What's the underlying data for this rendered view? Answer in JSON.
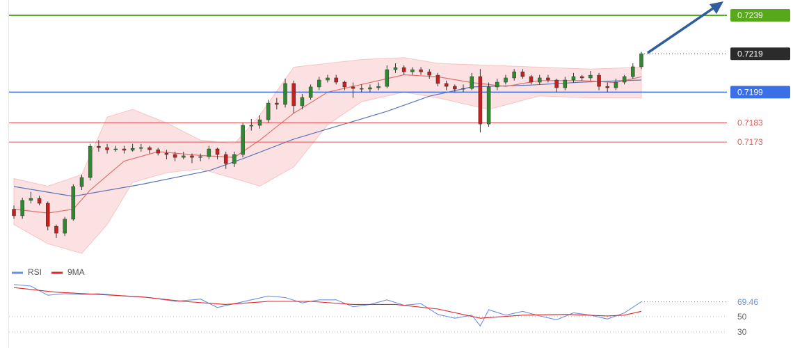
{
  "chart_data": [
    {
      "type": "candlestick",
      "ylim": [
        0.71092,
        0.7247
      ],
      "up_color": "#2f8a2f",
      "down_color": "#c42020",
      "open": [
        0.7138,
        0.71346,
        0.71426,
        0.71436,
        0.71411,
        0.71291,
        0.71255,
        0.71328,
        0.71498,
        0.71545,
        0.71708,
        0.71701,
        0.7169,
        0.71694,
        0.71687,
        0.71697,
        0.71701,
        0.7169,
        0.71672,
        0.71665,
        0.7165,
        0.71658,
        0.7165,
        0.71654,
        0.71694,
        0.71665,
        0.71618,
        0.71665,
        0.71817,
        0.71817,
        0.71846,
        0.71933,
        0.71926,
        0.72035,
        0.71919,
        0.71962,
        0.72017,
        0.72053,
        0.72064,
        0.72042,
        0.72017,
        0.72009,
        0.72006,
        0.72013,
        0.7202,
        0.72107,
        0.72118,
        0.72096,
        0.72107,
        0.72096,
        0.72078,
        0.72035,
        0.7202,
        0.72006,
        0.72009,
        0.72071,
        0.71824,
        0.72017,
        0.72042,
        0.72064,
        0.72096,
        0.72071,
        0.72042,
        0.72064,
        0.72053,
        0.72013,
        0.72053,
        0.72071,
        0.72064,
        0.72078,
        0.7202,
        0.72013,
        0.72042,
        0.72071,
        0.72122
      ],
      "high": [
        0.714,
        0.7144,
        0.7147,
        0.7145,
        0.7142,
        0.713,
        0.7134,
        0.7151,
        0.7156,
        0.7172,
        0.7174,
        0.7172,
        0.7171,
        0.7171,
        0.7172,
        0.7172,
        0.7171,
        0.717,
        0.7169,
        0.7168,
        0.7168,
        0.7167,
        0.7167,
        0.7171,
        0.717,
        0.7168,
        0.7168,
        0.7183,
        0.7185,
        0.7187,
        0.7195,
        0.7196,
        0.7206,
        0.7205,
        0.7198,
        0.7203,
        0.7207,
        0.7208,
        0.7208,
        0.7205,
        0.7204,
        0.7203,
        0.7203,
        0.7204,
        0.7213,
        0.7214,
        0.7213,
        0.7212,
        0.7212,
        0.7211,
        0.7209,
        0.7205,
        0.7203,
        0.7203,
        0.7209,
        0.7211,
        0.7204,
        0.7206,
        0.7208,
        0.7211,
        0.7211,
        0.7208,
        0.7208,
        0.7208,
        0.7206,
        0.7207,
        0.7209,
        0.7208,
        0.721,
        0.7209,
        0.7204,
        0.7206,
        0.7208,
        0.7214,
        0.722
      ],
      "low": [
        0.7133,
        0.7133,
        0.7141,
        0.714,
        0.7127,
        0.7123,
        0.7124,
        0.7132,
        0.7148,
        0.7153,
        0.7168,
        0.7167,
        0.7168,
        0.7167,
        0.7168,
        0.7168,
        0.7167,
        0.7166,
        0.7164,
        0.7163,
        0.7164,
        0.7162,
        0.7163,
        0.7164,
        0.7164,
        0.7159,
        0.716,
        0.7165,
        0.7179,
        0.718,
        0.7183,
        0.719,
        0.7191,
        0.7188,
        0.719,
        0.7195,
        0.72,
        0.7204,
        0.7203,
        0.72,
        0.7196,
        0.7199,
        0.7199,
        0.72,
        0.7201,
        0.7209,
        0.7208,
        0.7208,
        0.7208,
        0.7206,
        0.7202,
        0.72,
        0.7199,
        0.7199,
        0.72,
        0.7178,
        0.7181,
        0.72,
        0.7203,
        0.7205,
        0.7206,
        0.7203,
        0.7203,
        0.7204,
        0.7199,
        0.72,
        0.7204,
        0.7205,
        0.7205,
        0.72,
        0.7199,
        0.72,
        0.7203,
        0.7206,
        0.7211
      ],
      "close": [
        0.71346,
        0.71426,
        0.71436,
        0.71411,
        0.71291,
        0.71255,
        0.71328,
        0.71498,
        0.71545,
        0.71708,
        0.71701,
        0.7169,
        0.71694,
        0.71687,
        0.71697,
        0.71701,
        0.7169,
        0.71672,
        0.71665,
        0.7165,
        0.71658,
        0.7165,
        0.71654,
        0.71694,
        0.71665,
        0.71618,
        0.71665,
        0.71817,
        0.71817,
        0.71846,
        0.71933,
        0.71926,
        0.72035,
        0.71919,
        0.71962,
        0.72017,
        0.72053,
        0.72064,
        0.72042,
        0.72017,
        0.72009,
        0.72006,
        0.72013,
        0.7202,
        0.72107,
        0.72118,
        0.72096,
        0.72107,
        0.72096,
        0.72078,
        0.72035,
        0.7202,
        0.72006,
        0.72009,
        0.72071,
        0.71824,
        0.72017,
        0.72042,
        0.72064,
        0.72096,
        0.72071,
        0.72042,
        0.72064,
        0.72053,
        0.72013,
        0.72053,
        0.72071,
        0.72064,
        0.72078,
        0.7202,
        0.72013,
        0.72042,
        0.72071,
        0.72122,
        0.7219
      ],
      "band": {
        "color": "#f4a9a9",
        "x": [
          0,
          4,
          8,
          11,
          14,
          18,
          22,
          26,
          29,
          33,
          37,
          41,
          46,
          50,
          56,
          62,
          68,
          74
        ],
        "upper": [
          0.7154,
          0.715,
          0.7156,
          0.7186,
          0.719,
          0.7183,
          0.7174,
          0.7172,
          0.7187,
          0.7212,
          0.7214,
          0.7216,
          0.7217,
          0.7214,
          0.7213,
          0.7212,
          0.7211,
          0.7212
        ],
        "lower": [
          0.713,
          0.712,
          0.7115,
          0.713,
          0.7152,
          0.7157,
          0.7159,
          0.7154,
          0.715,
          0.716,
          0.7182,
          0.7194,
          0.7199,
          0.7196,
          0.719,
          0.7197,
          0.7196,
          0.7196
        ]
      },
      "overlays": [
        {
          "color": "#5b74b8",
          "x": [
            0,
            7,
            15,
            23,
            27,
            33,
            39,
            44,
            49,
            54,
            61,
            67,
            74
          ],
          "values": [
            0.71498,
            0.71447,
            0.71509,
            0.71581,
            0.71643,
            0.71745,
            0.71824,
            0.7189,
            0.71969,
            0.72017,
            0.72027,
            0.72042,
            0.72053
          ]
        },
        {
          "color": "#e07070",
          "x": [
            0,
            4,
            7,
            9,
            13,
            17,
            22,
            26,
            29,
            33,
            37,
            41,
            46,
            50,
            54,
            58,
            62,
            67,
            71,
            74
          ],
          "values": [
            0.7138,
            0.7136,
            0.7138,
            0.7148,
            0.7163,
            0.7168,
            0.7166,
            0.7165,
            0.7174,
            0.7188,
            0.7199,
            0.7203,
            0.7208,
            0.7207,
            0.7204,
            0.7202,
            0.7205,
            0.7205,
            0.7204,
            0.7207
          ]
        }
      ],
      "levels": [
        {
          "value": 0.7239,
          "color": "#58a81c",
          "style": "box",
          "width": 2
        },
        {
          "value": 0.7199,
          "color": "#3b6fe6",
          "style": "box",
          "width": 1.5
        },
        {
          "value": 0.7183,
          "color": "#e05555",
          "style": "plain",
          "width": 1
        },
        {
          "value": 0.7173,
          "color": "#e05555",
          "style": "plain",
          "width": 1
        }
      ],
      "last_color": "#2b2b2b"
    },
    {
      "type": "line",
      "ylim": [
        14,
        100
      ],
      "yticks": [
        50,
        30
      ],
      "grid": true,
      "series": [
        {
          "name": "RSI",
          "color": "#6d8fe0",
          "x": [
            0,
            2,
            4,
            6,
            8,
            10,
            13,
            16,
            19,
            22,
            24,
            26,
            28,
            30,
            32,
            34,
            36,
            38,
            40,
            42,
            44,
            46,
            48,
            50,
            52,
            54,
            55,
            56,
            58,
            60,
            62,
            64,
            66,
            68,
            70,
            72,
            74
          ],
          "values": [
            92,
            90,
            78,
            80,
            79,
            80,
            77,
            75,
            70,
            73,
            62,
            67,
            72,
            77,
            75,
            68,
            72,
            72,
            63,
            66,
            72,
            65,
            67,
            53,
            48,
            52,
            38,
            59,
            52,
            57,
            51,
            46,
            55,
            52,
            47,
            55,
            69.46
          ]
        },
        {
          "name": "9MA",
          "color": "#e02828",
          "x": [
            0,
            5,
            10,
            15,
            20,
            25,
            30,
            35,
            40,
            45,
            50,
            55,
            60,
            65,
            70,
            72,
            74
          ],
          "values": [
            88,
            82,
            79,
            76,
            70,
            66,
            70,
            70,
            66,
            66,
            60,
            48,
            52,
            53,
            51,
            52,
            57
          ]
        }
      ]
    }
  ]
}
